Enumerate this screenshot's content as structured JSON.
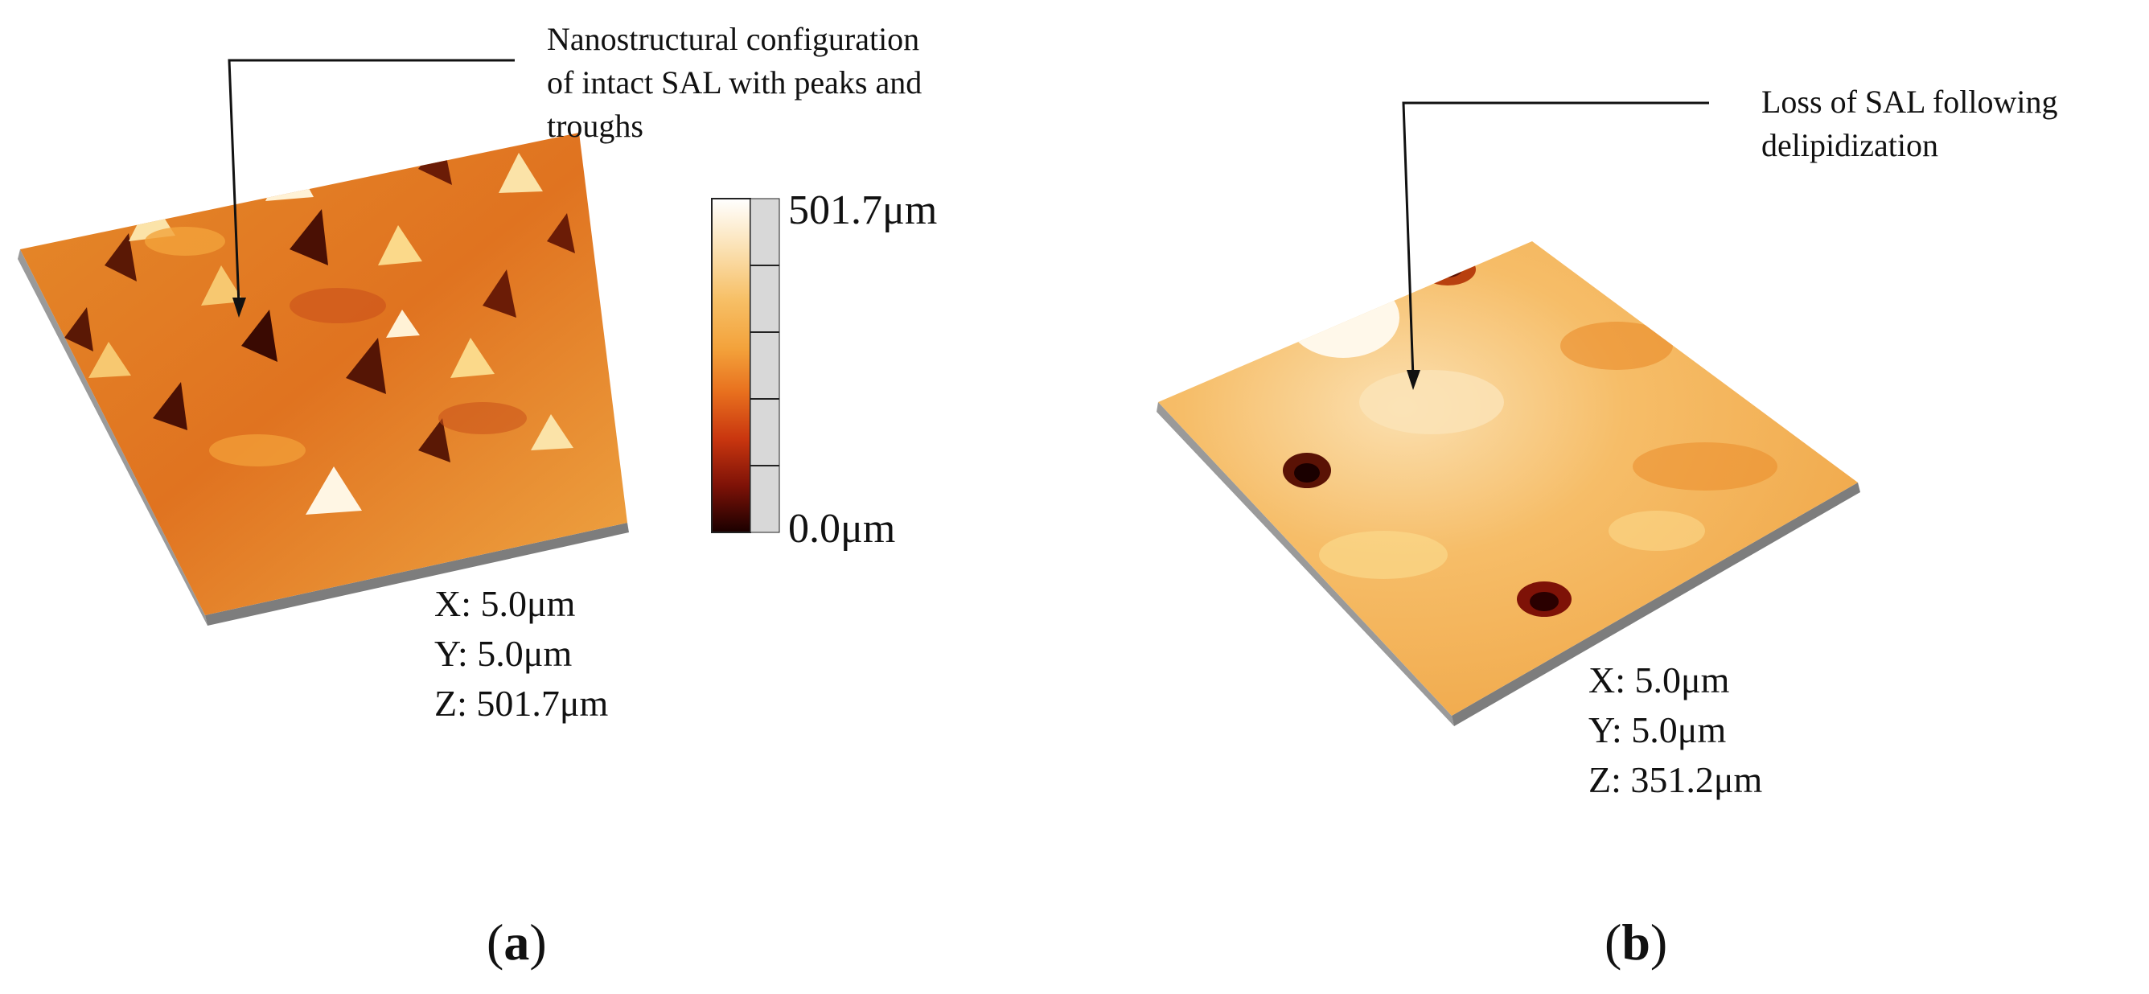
{
  "panel_a": {
    "annotation": [
      "Nanostructural configuration",
      "of intact SAL with peaks and",
      "troughs"
    ],
    "colorbar": {
      "max_label": "501.7μm",
      "min_label": "0.0μm"
    },
    "dims": {
      "x": "X: 5.0μm",
      "y": "Y: 5.0μm",
      "z": "Z: 501.7μm"
    },
    "label": {
      "open": "(",
      "letter": "a",
      "close": ")"
    }
  },
  "panel_b": {
    "annotation": [
      "Loss of SAL following",
      "delipidization"
    ],
    "dims": {
      "x": "X: 5.0μm",
      "y": "Y: 5.0μm",
      "z": "Z: 351.2μm"
    },
    "label": {
      "open": "(",
      "letter": "b",
      "close": ")"
    }
  },
  "colors": {
    "colormap": [
      "#ffffff",
      "#fbe3b8",
      "#f7c067",
      "#f3a23b",
      "#e8701e",
      "#c9360f",
      "#7e1207",
      "#1a0000"
    ],
    "surface_a_base": "#e7831f",
    "surface_b_base": "#f3ae4a",
    "edge": "#8a8a8a"
  }
}
